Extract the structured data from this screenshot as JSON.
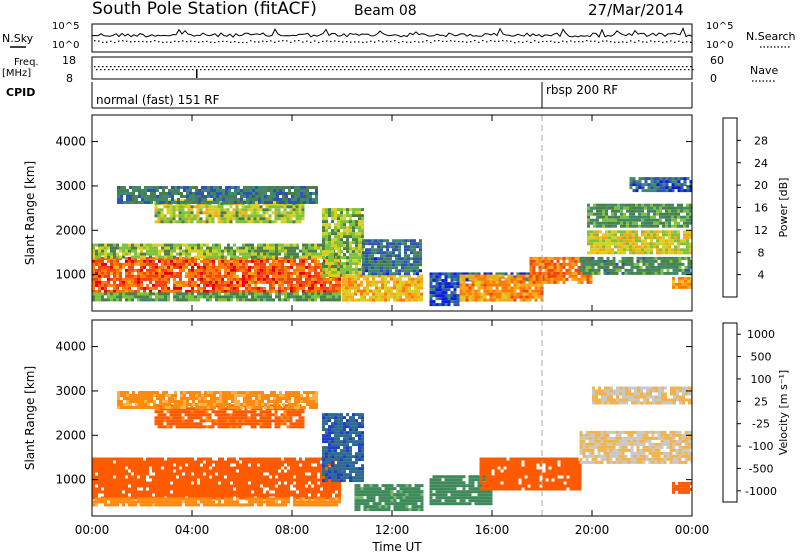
{
  "header": {
    "station": "South Pole Station (fitACF)",
    "beam": "Beam 08",
    "date": "27/Mar/2014"
  },
  "strips": {
    "nsky_label": "N.Sky",
    "nsky_ticks": [
      "10^5",
      "10^0"
    ],
    "nsearch_label": "N.Search",
    "nsearch_ticks": [
      "10^5",
      "10^0"
    ],
    "freq_label": "Freq.",
    "freq_unit": "[MHz]",
    "freq_ticks": [
      "18",
      "8"
    ],
    "nave_label": "Nave",
    "nave_ticks": [
      "60",
      "0"
    ],
    "cpid_label": "CPID",
    "cpid_segments": [
      {
        "text": "normal (fast) 151 RF",
        "start_hour": 0
      },
      {
        "text": "rbsp 200 RF",
        "start_hour": 18
      }
    ]
  },
  "x_axis": {
    "label": "Time UT",
    "ticks": [
      "00:00",
      "04:00",
      "08:00",
      "12:00",
      "16:00",
      "20:00",
      "00:00"
    ]
  },
  "colors": {
    "power": [
      "#0a1fd8",
      "#2f55b4",
      "#3f8a6b",
      "#4a7f4a",
      "#7cc23a",
      "#d8d020",
      "#f7a818",
      "#ff7a00",
      "#f24410",
      "#e80000"
    ],
    "velocity": [
      "#e00000",
      "#ff5a00",
      "#ff8a10",
      "#f2b44a",
      "#c8c8c8",
      "#72b868",
      "#3f8a5a",
      "#2d6c8e",
      "#1f3fc8"
    ]
  },
  "chart_data": [
    {
      "type": "heatmap",
      "title": "",
      "xlabel": "",
      "ylabel": "Slant Range [km]",
      "xlim": [
        0,
        24
      ],
      "ylim": [
        180,
        4600
      ],
      "yticks": [
        "1000",
        "2000",
        "3000",
        "4000"
      ],
      "colorbar_label": "Power [dB]",
      "colorbar_ticks": [
        "4",
        "8",
        "12",
        "16",
        "20",
        "24",
        "28"
      ],
      "colorbar_range": [
        0,
        32
      ],
      "regions": [
        {
          "x": [
            0,
            9.9
          ],
          "y": [
            600,
            1400
          ],
          "value": 26
        },
        {
          "x": [
            0,
            9.9
          ],
          "y": [
            1400,
            1700
          ],
          "value": 14
        },
        {
          "x": [
            0,
            9.9
          ],
          "y": [
            450,
            600
          ],
          "value": 12
        },
        {
          "x": [
            2.5,
            8.5
          ],
          "y": [
            2200,
            2700
          ],
          "value": 16
        },
        {
          "x": [
            1,
            9
          ],
          "y": [
            2600,
            3000
          ],
          "value": 8
        },
        {
          "x": [
            9.2,
            10.8
          ],
          "y": [
            1000,
            2500
          ],
          "value": 15
        },
        {
          "x": [
            10,
            13.2
          ],
          "y": [
            400,
            1000
          ],
          "value": 20
        },
        {
          "x": [
            10.8,
            13.2
          ],
          "y": [
            1000,
            1800
          ],
          "value": 7
        },
        {
          "x": [
            13.5,
            14.7
          ],
          "y": [
            300,
            900
          ],
          "value": 4
        },
        {
          "x": [
            13.5,
            18.5
          ],
          "y": [
            850,
            1050
          ],
          "value": 5
        },
        {
          "x": [
            14.7,
            18
          ],
          "y": [
            450,
            1000
          ],
          "value": 22
        },
        {
          "x": [
            17.5,
            20
          ],
          "y": [
            800,
            1400
          ],
          "value": 24
        },
        {
          "x": [
            19.8,
            24
          ],
          "y": [
            1500,
            2000
          ],
          "value": 18
        },
        {
          "x": [
            19.8,
            24
          ],
          "y": [
            2100,
            2600
          ],
          "value": 11
        },
        {
          "x": [
            19.5,
            24
          ],
          "y": [
            1000,
            1400
          ],
          "value": 10
        },
        {
          "x": [
            21.5,
            24
          ],
          "y": [
            2900,
            3200
          ],
          "value": 6
        },
        {
          "x": [
            23.2,
            24
          ],
          "y": [
            700,
            950
          ],
          "value": 22
        }
      ]
    },
    {
      "type": "heatmap",
      "title": "",
      "xlabel": "Time UT",
      "ylabel": "Slant Range [km]",
      "xlim": [
        0,
        24
      ],
      "ylim": [
        180,
        4600
      ],
      "yticks": [
        "1000",
        "2000",
        "3000",
        "4000"
      ],
      "colorbar_label": "Velocity [m s⁻¹]",
      "colorbar_ticks": [
        "1000",
        "500",
        "100",
        "25",
        "-25",
        "-100",
        "-500",
        "-1000"
      ],
      "colorbar_range": [
        -1000,
        1000
      ],
      "regions": [
        {
          "x": [
            0,
            9.9
          ],
          "y": [
            600,
            1500
          ],
          "value": -200
        },
        {
          "x": [
            0,
            9.9
          ],
          "y": [
            450,
            600
          ],
          "value": -60
        },
        {
          "x": [
            2.5,
            8.5
          ],
          "y": [
            2200,
            2700
          ],
          "value": -150
        },
        {
          "x": [
            1,
            9
          ],
          "y": [
            2600,
            3000
          ],
          "value": -40
        },
        {
          "x": [
            9.2,
            10.8
          ],
          "y": [
            1000,
            2500
          ],
          "value": 600
        },
        {
          "x": [
            10.5,
            13.2
          ],
          "y": [
            300,
            900
          ],
          "value": 150
        },
        {
          "x": [
            13.5,
            16
          ],
          "y": [
            450,
            1100
          ],
          "value": 200
        },
        {
          "x": [
            15.5,
            19.5
          ],
          "y": [
            800,
            1500
          ],
          "value": -250
        },
        {
          "x": [
            19.5,
            24
          ],
          "y": [
            1400,
            2100
          ],
          "value": 0
        },
        {
          "x": [
            20,
            24
          ],
          "y": [
            2700,
            3100
          ],
          "value": 0
        },
        {
          "x": [
            23.2,
            24
          ],
          "y": [
            700,
            950
          ],
          "value": -250
        }
      ]
    }
  ]
}
